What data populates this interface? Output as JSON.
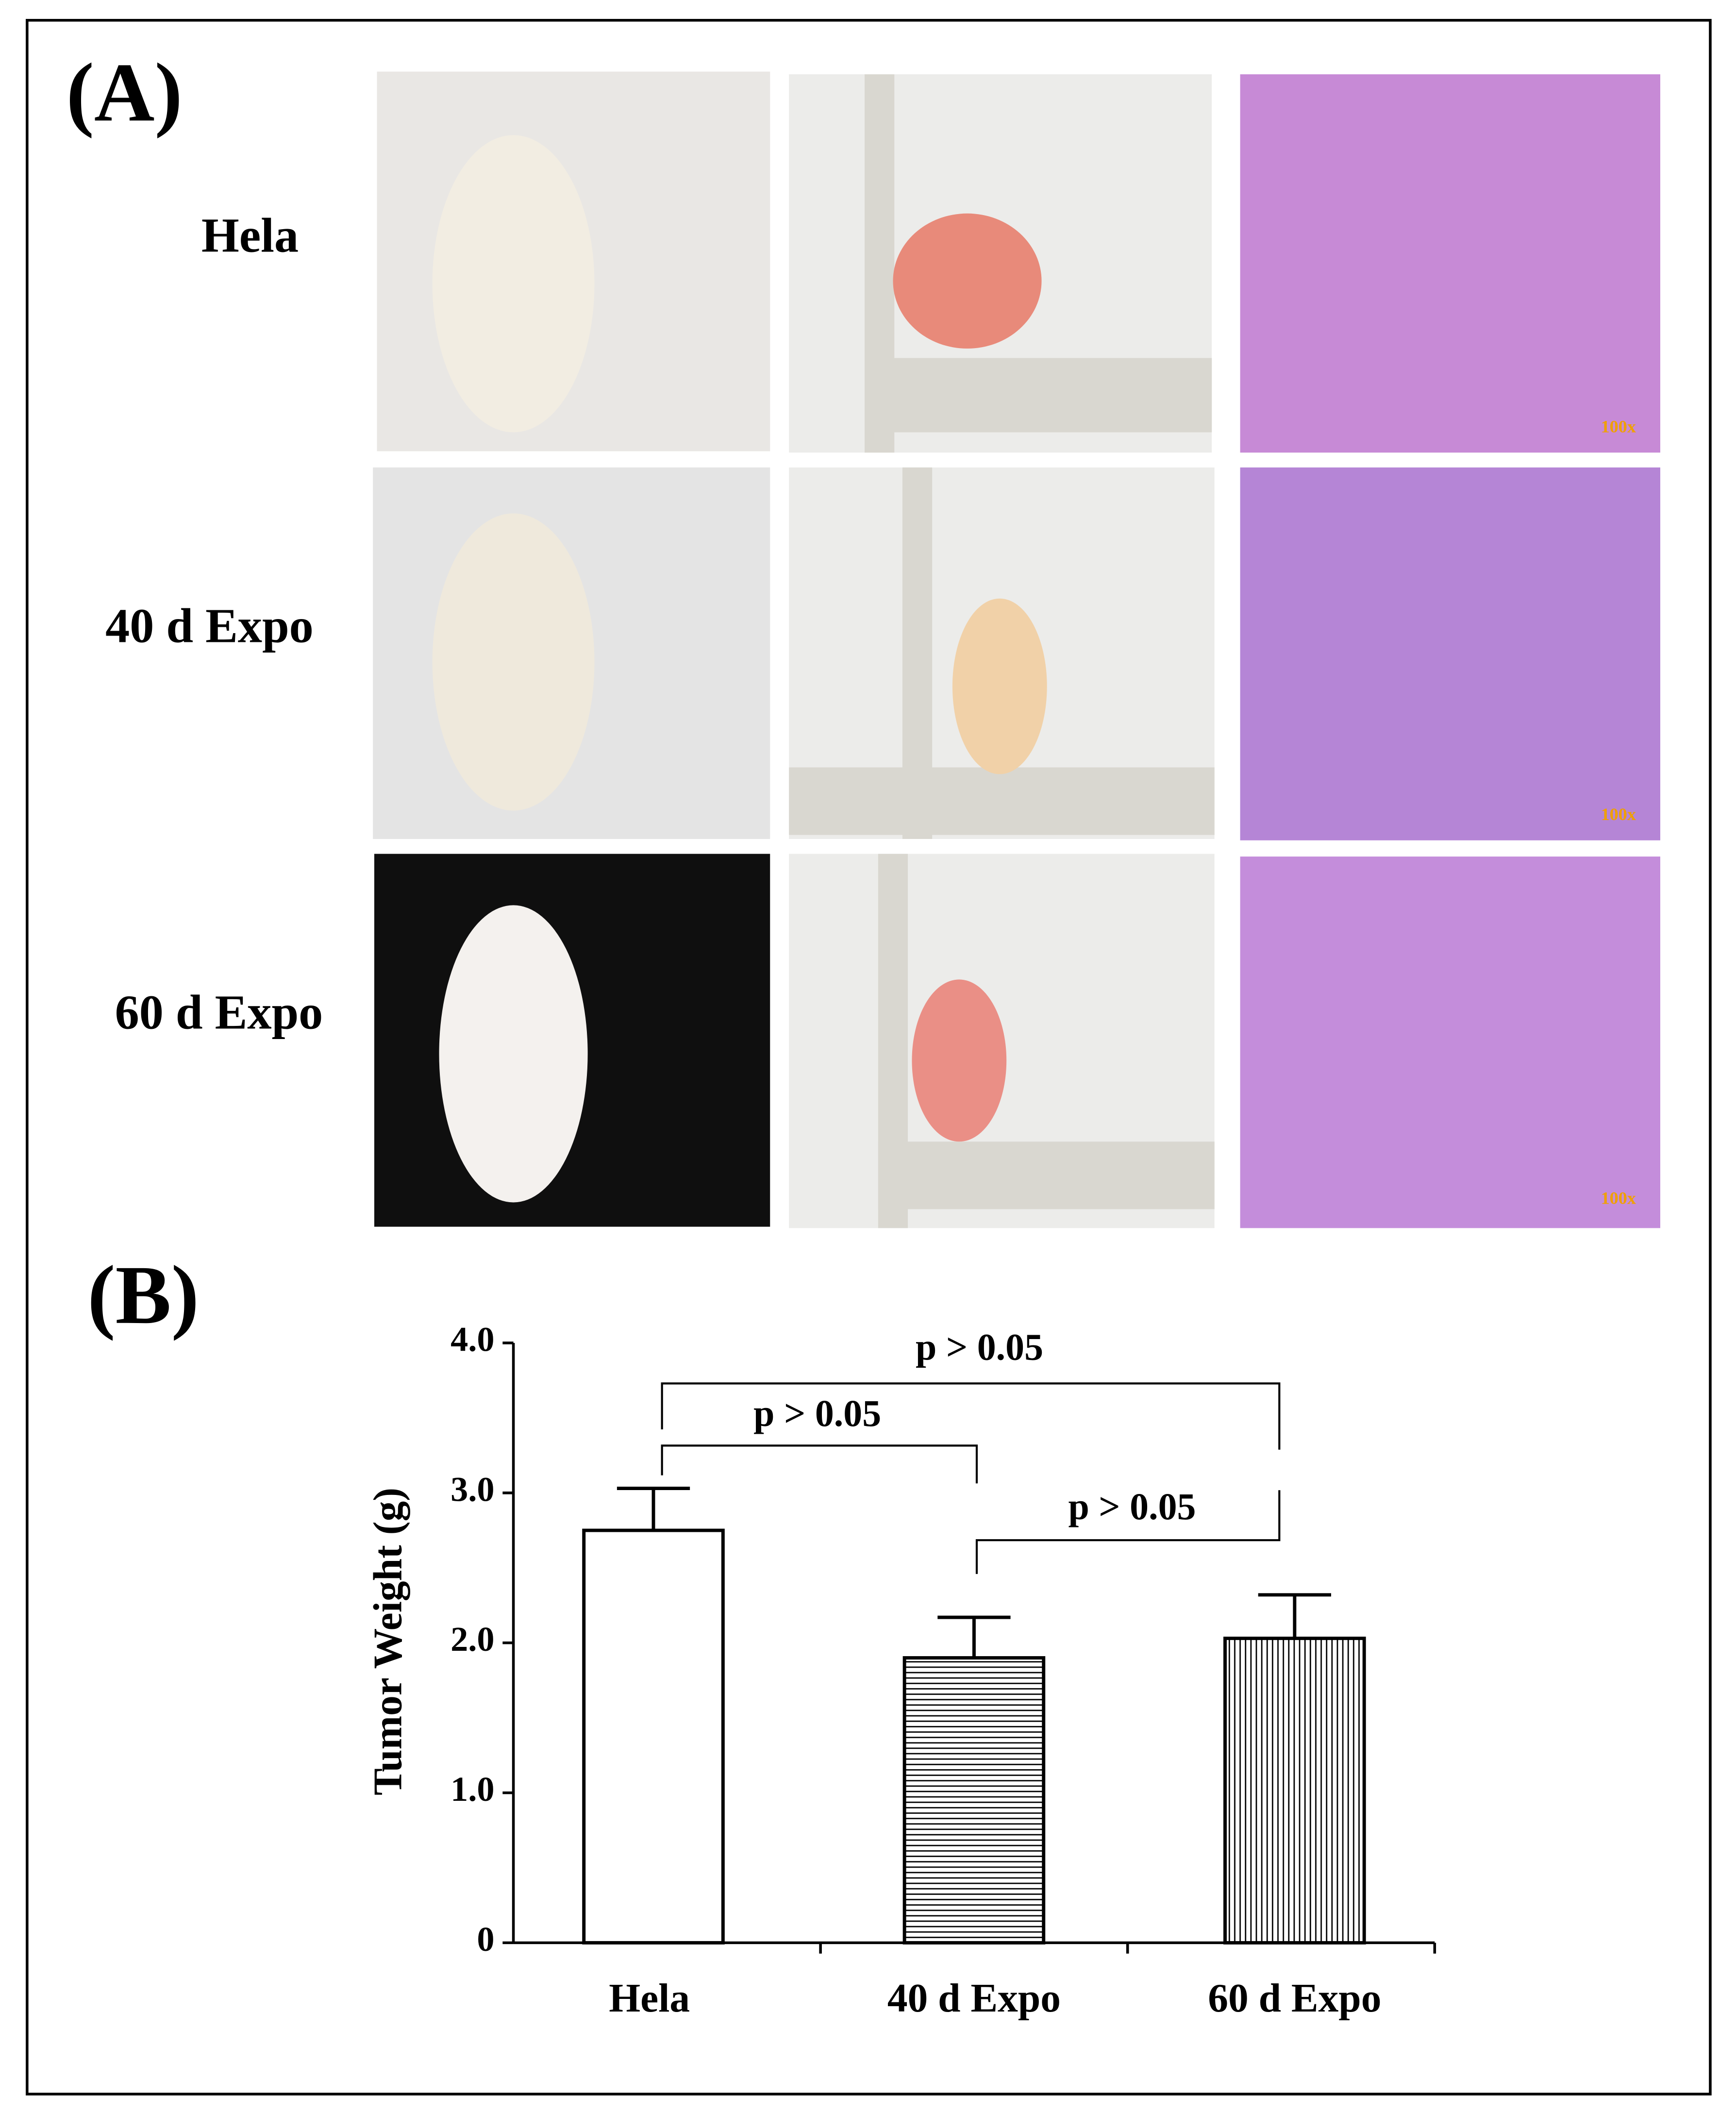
{
  "panel_a": {
    "label": "(A)",
    "rows": [
      "Hela",
      "40 d Expo",
      "60 d Expo"
    ],
    "scale_labels": [
      "100x",
      "100x",
      "100x"
    ]
  },
  "panel_b": {
    "label": "(B)"
  },
  "chart_data": {
    "type": "bar",
    "y_label": "Tumor Weight  (g)",
    "categories": [
      "Hela",
      "40 d Expo",
      "60 d Expo"
    ],
    "values": [
      2.75,
      1.9,
      2.03
    ],
    "errors": [
      0.28,
      0.27,
      0.29
    ],
    "patterns": [
      "none",
      "horizontal",
      "vertical"
    ],
    "color": "#000000",
    "ylim": [
      0,
      4
    ],
    "yticks": [
      0,
      {
        "value": 1,
        "label": "1.0"
      },
      {
        "value": 2,
        "label": "2.0"
      },
      {
        "value": 3,
        "label": "3.0"
      },
      {
        "value": 4,
        "label": "4.0"
      }
    ],
    "annotations": [
      "p > 0.05",
      "p > 0.05",
      "p > 0.05"
    ]
  }
}
